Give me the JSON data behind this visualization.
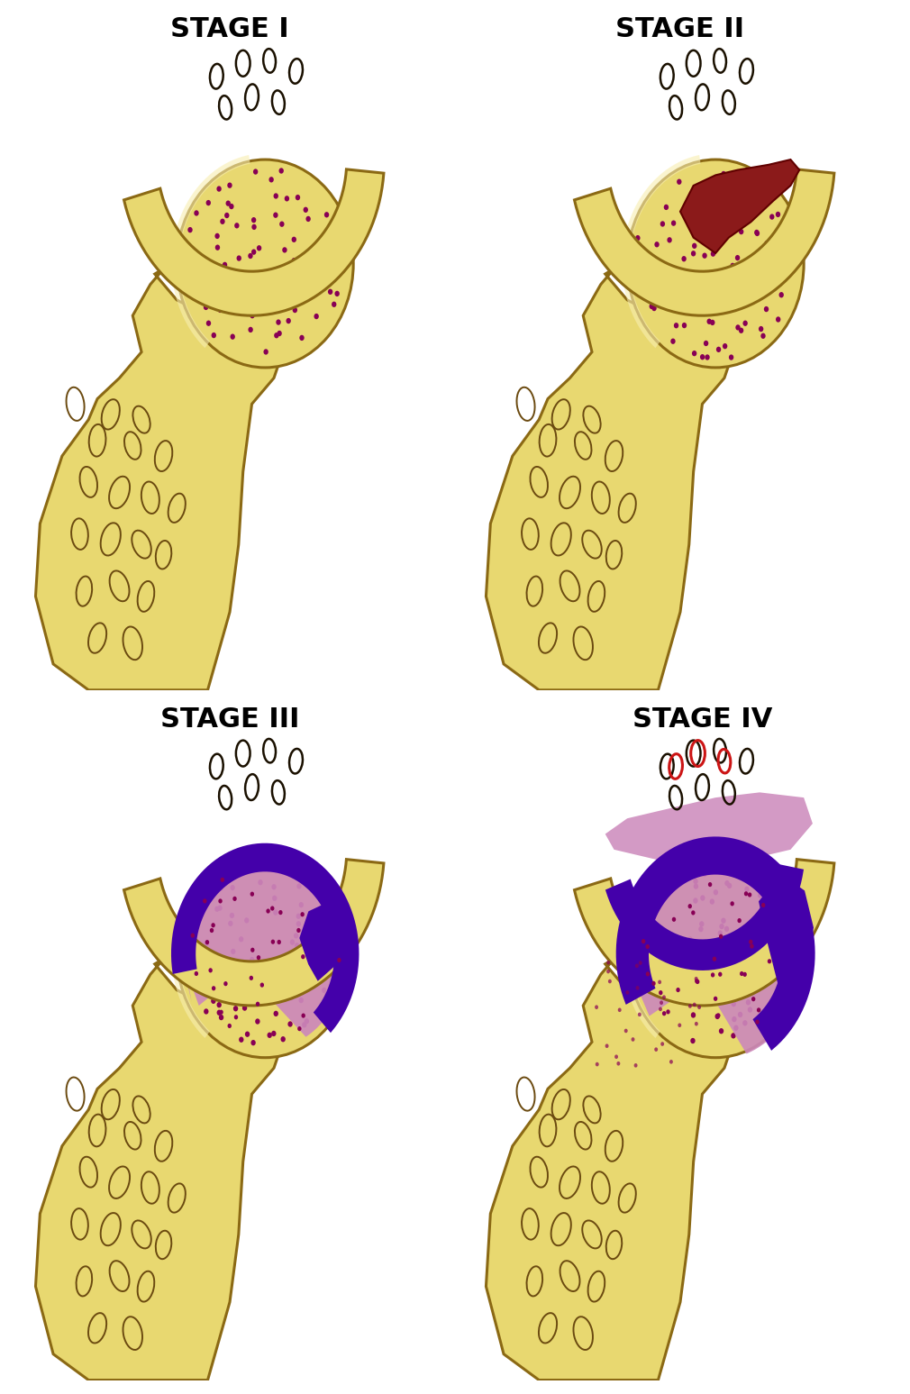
{
  "stages": [
    "STAGE I",
    "STAGE II",
    "STAGE III",
    "STAGE IV"
  ],
  "bone_fill": "#E8D870",
  "bone_fill_light": "#F5E090",
  "bone_edge": "#8B6914",
  "bone_peach": "#F0C878",
  "dot_color": "#880055",
  "necrosis_red": "#8B1A1A",
  "purple_dark": "#4400AA",
  "pink_zone": "#CC88BB",
  "background": "#FFFFFF",
  "font_size": 22,
  "font_weight": "bold",
  "oval_edge": "#6B4A10",
  "acet_oval_edge": "#1A1000"
}
